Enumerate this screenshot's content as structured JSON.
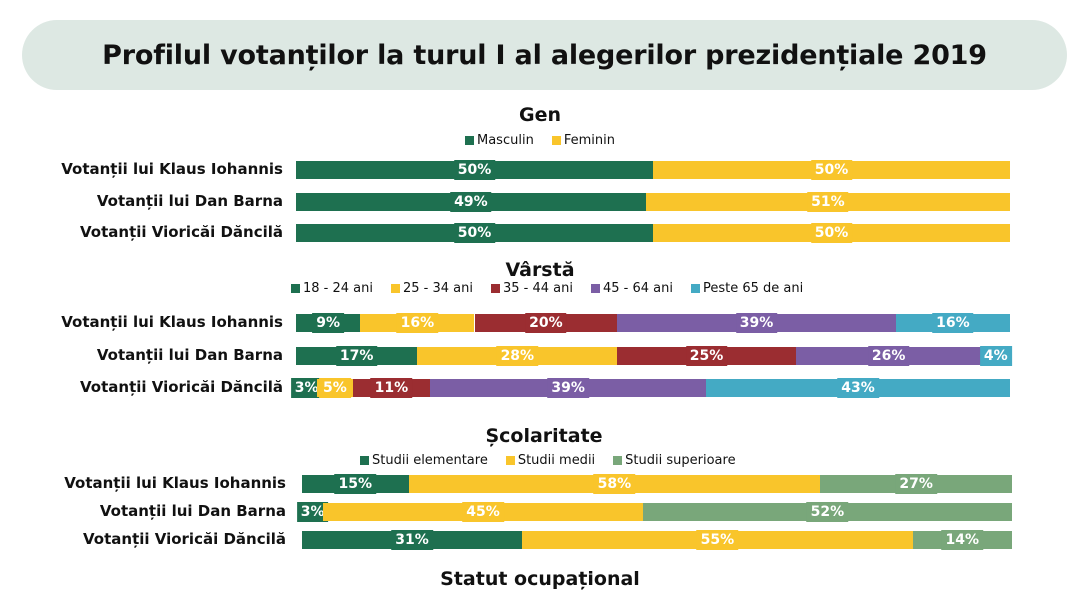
{
  "title": "Profilul votanților la turul I al alegerilor prezidențiale 2019",
  "footer_title": "Statut ocupațional",
  "chart_data": [
    {
      "type": "bar",
      "stacked": true,
      "orientation": "horizontal",
      "title": "Gen",
      "categories": [
        "Votanții lui Klaus Iohannis",
        "Votanții lui Dan Barna",
        "Votanții Vioricăi Dăncilă"
      ],
      "series": [
        {
          "name": "Masculin",
          "color": "#1e7050",
          "values": [
            50,
            49,
            50
          ]
        },
        {
          "name": "Feminin",
          "color": "#f9c52b",
          "values": [
            50,
            51,
            50
          ]
        }
      ],
      "legend": "top"
    },
    {
      "type": "bar",
      "stacked": true,
      "orientation": "horizontal",
      "title": "Vârstă",
      "categories": [
        "Votanții lui Klaus Iohannis",
        "Votanții lui Dan Barna",
        "Votanții Vioricăi Dăncilă"
      ],
      "series": [
        {
          "name": "18 - 24 ani",
          "color": "#1e7050",
          "values": [
            9,
            17,
            3
          ]
        },
        {
          "name": "25 - 34 ani",
          "color": "#f9c52b",
          "values": [
            16,
            28,
            5
          ]
        },
        {
          "name": "35 - 44 ani",
          "color": "#9b2d31",
          "values": [
            20,
            25,
            11
          ]
        },
        {
          "name": "45 - 64 ani",
          "color": "#7b5ea5",
          "values": [
            39,
            26,
            39
          ]
        },
        {
          "name": "Peste 65 de ani",
          "color": "#44aac4",
          "values": [
            16,
            4,
            43
          ]
        }
      ],
      "legend": "top"
    },
    {
      "type": "bar",
      "stacked": true,
      "orientation": "horizontal",
      "title": "Școlaritate",
      "categories": [
        "Votanții lui Klaus Iohannis",
        "Votanții lui Dan Barna",
        "Votanții Vioricăi Dăncilă"
      ],
      "series": [
        {
          "name": "Studii elementare",
          "color": "#1e7050",
          "values": [
            15,
            3,
            31
          ]
        },
        {
          "name": "Studii medii",
          "color": "#f9c52b",
          "values": [
            58,
            45,
            55
          ]
        },
        {
          "name": "Studii superioare",
          "color": "#79a77a",
          "values": [
            27,
            52,
            14
          ]
        }
      ],
      "legend": "top"
    }
  ]
}
